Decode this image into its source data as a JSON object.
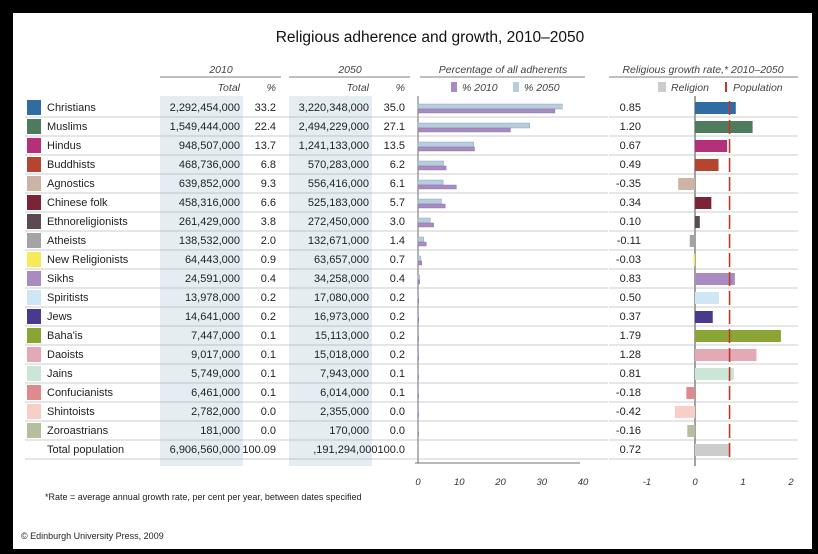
{
  "title": "Religious adherence and growth, 2010–2050",
  "headers": {
    "y2010": "2010",
    "y2050": "2050",
    "total": "Total",
    "pct": "%",
    "adherents": "Percentage of all adherents",
    "growth": "Religious growth rate,* 2010–2050"
  },
  "legend": {
    "pct2010": "% 2010",
    "pct2050": "% 2050",
    "religion": "Religion",
    "population": "Population"
  },
  "footnote": "*Rate = average annual growth rate, per cent per year, between dates specified",
  "copyright": "© Edinburgh University Press, 2009",
  "colors": {
    "pct2010": "#a98bc2",
    "pct2050": "#b7ccdc",
    "religion_legend": "#cccccc",
    "population": "#c0392b",
    "col_shade": "#e4eef2"
  },
  "chart_data": [
    {
      "type": "table",
      "columns": [
        "Religion",
        "2010 Total",
        "2010 %",
        "2050 Total",
        "2050 %",
        "Growth rate"
      ],
      "rows": [
        {
          "name": "Christians",
          "color": "#2e6ca3",
          "total2010": "2,292,454,000",
          "pct2010": "33.2",
          "total2050": "3,220,348,000",
          "pct2050": "35.0",
          "rate": "0.85"
        },
        {
          "name": "Muslims",
          "color": "#4e7a5e",
          "total2010": "1,549,444,000",
          "pct2010": "22.4",
          "total2050": "2,494,229,000",
          "pct2050": "27.1",
          "rate": "1.20"
        },
        {
          "name": "Hindus",
          "color": "#b5307a",
          "total2010": "948,507,000",
          "pct2010": "13.7",
          "total2050": "1,241,133,000",
          "pct2050": "13.5",
          "rate": "0.67"
        },
        {
          "name": "Buddhists",
          "color": "#b5452e",
          "total2010": "468,736,000",
          "pct2010": "6.8",
          "total2050": "570,283,000",
          "pct2050": "6.2",
          "rate": "0.49"
        },
        {
          "name": "Agnostics",
          "color": "#cdb3a6",
          "total2010": "639,852,000",
          "pct2010": "9.3",
          "total2050": "556,416,000",
          "pct2050": "6.1",
          "rate": "-0.35"
        },
        {
          "name": "Chinese folk",
          "color": "#7d2338",
          "total2010": "458,316,000",
          "pct2010": "6.6",
          "total2050": "525,183,000",
          "pct2050": "5.7",
          "rate": "0.34"
        },
        {
          "name": "Ethnoreligionists",
          "color": "#5a4a52",
          "total2010": "261,429,000",
          "pct2010": "3.8",
          "total2050": "272,450,000",
          "pct2050": "3.0",
          "rate": "0.10"
        },
        {
          "name": "Atheists",
          "color": "#a6a3a6",
          "total2010": "138,532,000",
          "pct2010": "2.0",
          "total2050": "132,671,000",
          "pct2050": "1.4",
          "rate": "-0.11"
        },
        {
          "name": "New Religionists",
          "color": "#f7ea5a",
          "total2010": "64,443,000",
          "pct2010": "0.9",
          "total2050": "63,657,000",
          "pct2050": "0.7",
          "rate": "-0.03"
        },
        {
          "name": "Sikhs",
          "color": "#a98bc2",
          "total2010": "24,591,000",
          "pct2010": "0.4",
          "total2050": "34,258,000",
          "pct2050": "0.4",
          "rate": "0.83"
        },
        {
          "name": "Spiritists",
          "color": "#cfe6f5",
          "total2010": "13,978,000",
          "pct2010": "0.2",
          "total2050": "17,080,000",
          "pct2050": "0.2",
          "rate": "0.50"
        },
        {
          "name": "Jews",
          "color": "#4a3a8e",
          "total2010": "14,641,000",
          "pct2010": "0.2",
          "total2050": "16,973,000",
          "pct2050": "0.2",
          "rate": "0.37"
        },
        {
          "name": "Baha'is",
          "color": "#8aa534",
          "total2010": "7,447,000",
          "pct2010": "0.1",
          "total2050": "15,113,000",
          "pct2050": "0.2",
          "rate": "1.79"
        },
        {
          "name": "Daoists",
          "color": "#e3aab6",
          "total2010": "9,017,000",
          "pct2010": "0.1",
          "total2050": "15,018,000",
          "pct2050": "0.2",
          "rate": "1.28"
        },
        {
          "name": "Jains",
          "color": "#cbe5d6",
          "total2010": "5,749,000",
          "pct2010": "0.1",
          "total2050": "7,943,000",
          "pct2050": "0.1",
          "rate": "0.81"
        },
        {
          "name": "Confucianists",
          "color": "#df8a8e",
          "total2010": "6,461,000",
          "pct2010": "0.1",
          "total2050": "6,014,000",
          "pct2050": "0.1",
          "rate": "-0.18"
        },
        {
          "name": "Shintoists",
          "color": "#f7cfc7",
          "total2010": "2,782,000",
          "pct2010": "0.0",
          "total2050": "2,355,000",
          "pct2050": "0.0",
          "rate": "-0.42"
        },
        {
          "name": "Zoroastrians",
          "color": "#b6bea0",
          "total2010": "181,000",
          "pct2010": "0.0",
          "total2050": "170,000",
          "pct2050": "0.0",
          "rate": "-0.16"
        }
      ],
      "total_row": {
        "name": "Total population",
        "color": "#cccccc",
        "total2010": "6,906,560,000",
        "pct2010": "100.09",
        "total2050": ",191,294,000100.0",
        "pct2050": "",
        "rate": "0.72"
      }
    },
    {
      "type": "bar",
      "title": "Percentage of all adherents",
      "series_names": [
        "% 2010",
        "% 2050"
      ],
      "xlim": [
        0,
        40
      ],
      "ticks": [
        "0",
        "10",
        "20",
        "30",
        "40"
      ]
    },
    {
      "type": "bar",
      "title": "Religious growth rate,* 2010–2050",
      "population_rate": 0.72,
      "xlim": [
        -1,
        2
      ],
      "ticks": [
        "-1",
        "0",
        "1",
        "2"
      ]
    }
  ]
}
